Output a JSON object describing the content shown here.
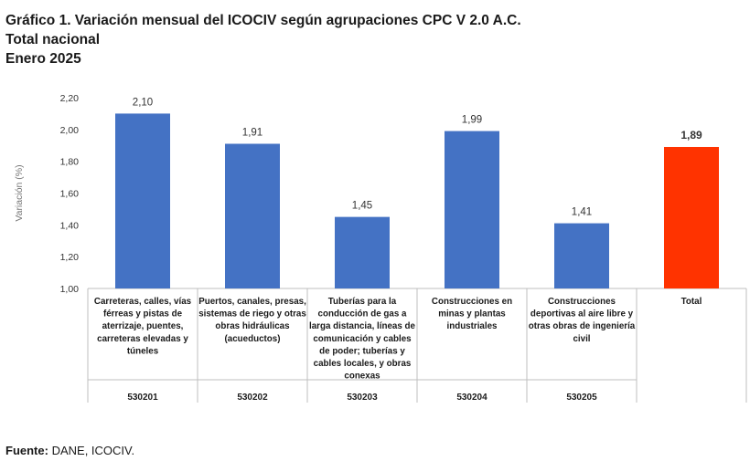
{
  "title": {
    "line1": "Gráfico 1. Variación mensual del ICOCIV según agrupaciones CPC V 2.0 A.C.",
    "line2": "Total nacional",
    "line3": "Enero 2025"
  },
  "source": {
    "label": "Fuente:",
    "text": "DANE, ICOCIV."
  },
  "colors": {
    "bar": "#4472C4",
    "total_bar": "#FF3300",
    "axis": "#BFBFBF",
    "text": "#1a1a1a"
  },
  "chart_data": {
    "type": "bar",
    "ylabel": "Variación (%)",
    "ylim": [
      1.0,
      2.2
    ],
    "yticks": [
      "1,00",
      "1,20",
      "1,40",
      "1,60",
      "1,80",
      "2,00",
      "2,20"
    ],
    "categories": [
      {
        "lines": [
          "Carreteras, calles, vías",
          "férreas y pistas de",
          "aterrizaje, puentes,",
          "carreteras elevadas y",
          "túneles"
        ],
        "code": "530201",
        "value": 2.1,
        "value_label": "2,10",
        "highlight": false
      },
      {
        "lines": [
          "Puertos, canales, presas,",
          "sistemas de riego y otras",
          "obras hidráulicas",
          "(acueductos)"
        ],
        "code": "530202",
        "value": 1.91,
        "value_label": "1,91",
        "highlight": false
      },
      {
        "lines": [
          "Tuberías para la",
          "conducción de gas a",
          "larga distancia, líneas de",
          "comunicación y cables",
          "de poder; tuberías y",
          "cables locales, y obras",
          "conexas"
        ],
        "code": "530203",
        "value": 1.45,
        "value_label": "1,45",
        "highlight": false
      },
      {
        "lines": [
          "Construcciones  en",
          "minas y plantas",
          "industriales"
        ],
        "code": "530204",
        "value": 1.99,
        "value_label": "1,99",
        "highlight": false
      },
      {
        "lines": [
          "Construcciones",
          "deportivas al aire libre y",
          "otras obras de ingeniería",
          "civil"
        ],
        "code": "530205",
        "value": 1.41,
        "value_label": "1,41",
        "highlight": false
      },
      {
        "lines": [
          "Total"
        ],
        "code": "",
        "value": 1.89,
        "value_label": "1,89",
        "highlight": true
      }
    ]
  }
}
